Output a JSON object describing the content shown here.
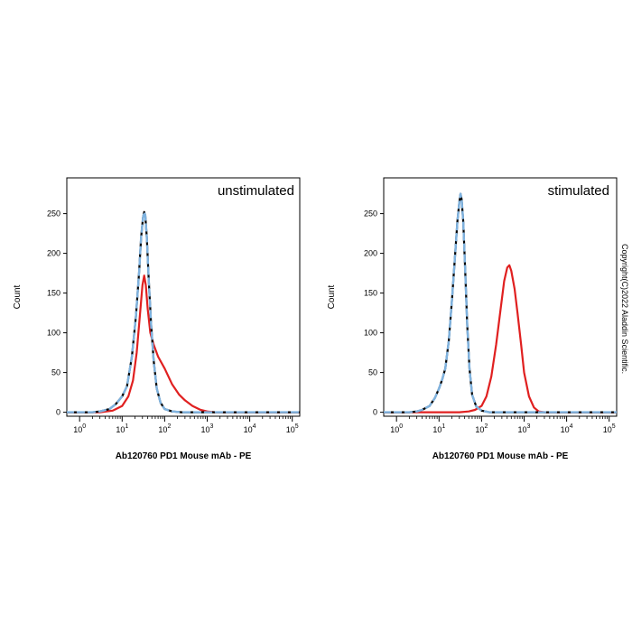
{
  "copyright": "Copyright(C)2022 Aladdin Scientific.",
  "chart_data": [
    {
      "type": "line",
      "panel_label": "unstimulated",
      "xlabel": "Ab120760 PD1 Mouse mAb - PE",
      "ylabel": "Count",
      "x_scale": "log",
      "xlim": [
        0.5,
        150000
      ],
      "ylim": [
        -5,
        295
      ],
      "y_ticks": [
        0,
        50,
        100,
        150,
        200,
        250
      ],
      "x_ticks": [
        {
          "base": "10",
          "exp": "0",
          "value": 1
        },
        {
          "base": "10",
          "exp": "1",
          "value": 10
        },
        {
          "base": "10",
          "exp": "2",
          "value": 100
        },
        {
          "base": "10",
          "exp": "3",
          "value": 1000
        },
        {
          "base": "10",
          "exp": "4",
          "value": 10000
        },
        {
          "base": "10",
          "exp": "5",
          "value": 100000
        }
      ],
      "series": [
        {
          "color": "#000000",
          "style": "solid",
          "points": [
            [
              0.5,
              0
            ],
            [
              2,
              0
            ],
            [
              3,
              1
            ],
            [
              5,
              4
            ],
            [
              7,
              10
            ],
            [
              10,
              20
            ],
            [
              13,
              33
            ],
            [
              17,
              70
            ],
            [
              21,
              120
            ],
            [
              25,
              175
            ],
            [
              28,
              220
            ],
            [
              31,
              245
            ],
            [
              33,
              252
            ],
            [
              35,
              248
            ],
            [
              38,
              220
            ],
            [
              42,
              170
            ],
            [
              48,
              110
            ],
            [
              55,
              65
            ],
            [
              65,
              30
            ],
            [
              80,
              12
            ],
            [
              100,
              4
            ],
            [
              150,
              1
            ],
            [
              250,
              0
            ],
            [
              150000,
              0
            ]
          ]
        },
        {
          "color": "#7fb3e0",
          "style": "dashed",
          "points": [
            [
              0.5,
              0
            ],
            [
              2,
              0
            ],
            [
              3,
              1
            ],
            [
              5,
              4
            ],
            [
              7,
              10
            ],
            [
              10,
              20
            ],
            [
              13,
              33
            ],
            [
              17,
              70
            ],
            [
              21,
              120
            ],
            [
              25,
              175
            ],
            [
              28,
              220
            ],
            [
              31,
              245
            ],
            [
              33,
              252
            ],
            [
              35,
              248
            ],
            [
              38,
              220
            ],
            [
              42,
              170
            ],
            [
              48,
              110
            ],
            [
              55,
              65
            ],
            [
              65,
              30
            ],
            [
              80,
              12
            ],
            [
              100,
              4
            ],
            [
              150,
              1
            ],
            [
              250,
              0
            ],
            [
              150000,
              0
            ]
          ]
        },
        {
          "color": "#e02020",
          "style": "solid",
          "points": [
            [
              0.5,
              0
            ],
            [
              3,
              0
            ],
            [
              6,
              2
            ],
            [
              10,
              8
            ],
            [
              14,
              20
            ],
            [
              18,
              40
            ],
            [
              22,
              75
            ],
            [
              26,
              120
            ],
            [
              30,
              160
            ],
            [
              33,
              172
            ],
            [
              36,
              160
            ],
            [
              40,
              130
            ],
            [
              46,
              100
            ],
            [
              55,
              85
            ],
            [
              70,
              70
            ],
            [
              100,
              55
            ],
            [
              150,
              35
            ],
            [
              220,
              22
            ],
            [
              300,
              15
            ],
            [
              450,
              8
            ],
            [
              700,
              3
            ],
            [
              1000,
              1
            ],
            [
              1500,
              0
            ],
            [
              150000,
              0
            ]
          ]
        }
      ]
    },
    {
      "type": "line",
      "panel_label": "stimulated",
      "xlabel": "Ab120760 PD1 Mouse mAb - PE",
      "ylabel": "Count",
      "x_scale": "log",
      "xlim": [
        0.5,
        150000
      ],
      "ylim": [
        -5,
        295
      ],
      "y_ticks": [
        0,
        50,
        100,
        150,
        200,
        250
      ],
      "x_ticks": [
        {
          "base": "10",
          "exp": "0",
          "value": 1
        },
        {
          "base": "10",
          "exp": "1",
          "value": 10
        },
        {
          "base": "10",
          "exp": "2",
          "value": 100
        },
        {
          "base": "10",
          "exp": "3",
          "value": 1000
        },
        {
          "base": "10",
          "exp": "4",
          "value": 10000
        },
        {
          "base": "10",
          "exp": "5",
          "value": 100000
        }
      ],
      "series": [
        {
          "color": "#000000",
          "style": "solid",
          "points": [
            [
              0.5,
              0
            ],
            [
              2,
              0
            ],
            [
              3,
              1
            ],
            [
              4,
              3
            ],
            [
              6,
              8
            ],
            [
              8,
              18
            ],
            [
              10,
              30
            ],
            [
              12,
              42
            ],
            [
              14,
              55
            ],
            [
              17,
              90
            ],
            [
              20,
              140
            ],
            [
              24,
              200
            ],
            [
              27,
              240
            ],
            [
              30,
              265
            ],
            [
              32,
              275
            ],
            [
              34,
              268
            ],
            [
              37,
              240
            ],
            [
              41,
              180
            ],
            [
              46,
              110
            ],
            [
              52,
              55
            ],
            [
              60,
              22
            ],
            [
              75,
              7
            ],
            [
              100,
              2
            ],
            [
              150,
              0
            ],
            [
              150000,
              0
            ]
          ]
        },
        {
          "color": "#7fb3e0",
          "style": "dashed",
          "points": [
            [
              0.5,
              0
            ],
            [
              2,
              0
            ],
            [
              3,
              1
            ],
            [
              4,
              3
            ],
            [
              6,
              8
            ],
            [
              8,
              18
            ],
            [
              10,
              30
            ],
            [
              12,
              42
            ],
            [
              14,
              55
            ],
            [
              17,
              90
            ],
            [
              20,
              140
            ],
            [
              24,
              200
            ],
            [
              27,
              240
            ],
            [
              30,
              265
            ],
            [
              32,
              275
            ],
            [
              34,
              268
            ],
            [
              37,
              240
            ],
            [
              41,
              180
            ],
            [
              46,
              110
            ],
            [
              52,
              55
            ],
            [
              60,
              22
            ],
            [
              75,
              7
            ],
            [
              100,
              2
            ],
            [
              150,
              0
            ],
            [
              150000,
              0
            ]
          ]
        },
        {
          "color": "#e02020",
          "style": "solid",
          "points": [
            [
              0.5,
              0
            ],
            [
              30,
              0
            ],
            [
              50,
              1
            ],
            [
              70,
              3
            ],
            [
              100,
              8
            ],
            [
              130,
              20
            ],
            [
              170,
              45
            ],
            [
              220,
              85
            ],
            [
              280,
              130
            ],
            [
              340,
              165
            ],
            [
              400,
              182
            ],
            [
              450,
              185
            ],
            [
              500,
              178
            ],
            [
              600,
              155
            ],
            [
              700,
              125
            ],
            [
              850,
              85
            ],
            [
              1000,
              50
            ],
            [
              1300,
              20
            ],
            [
              1700,
              6
            ],
            [
              2200,
              1
            ],
            [
              3000,
              0
            ],
            [
              150000,
              0
            ]
          ]
        }
      ]
    }
  ]
}
